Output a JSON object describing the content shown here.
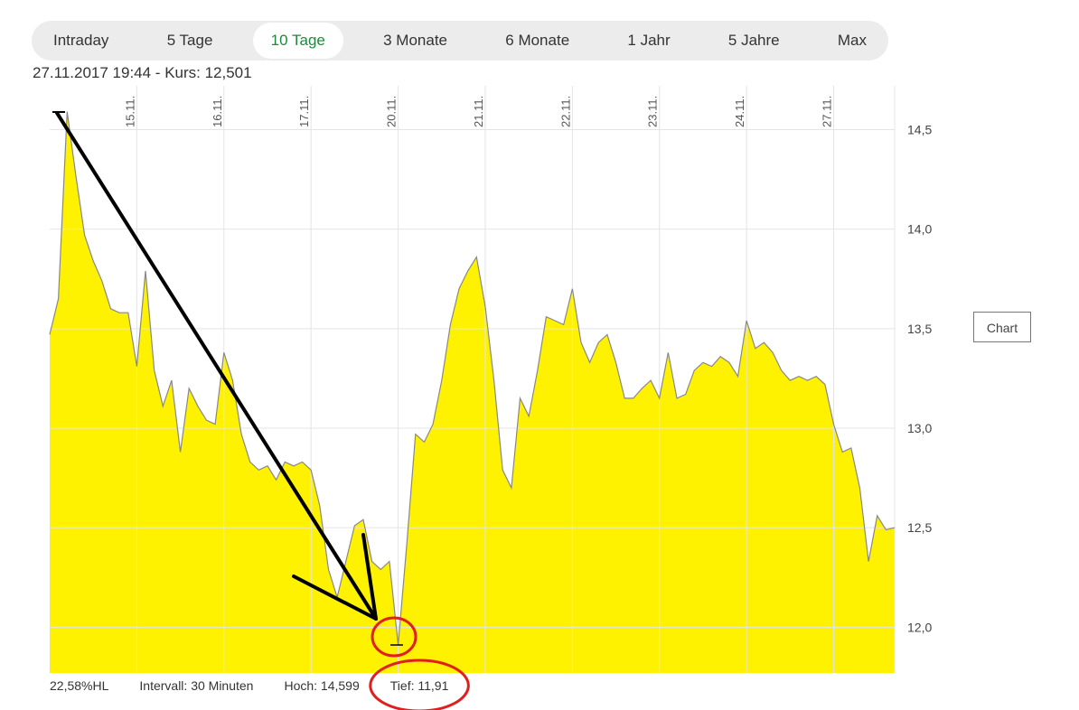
{
  "tabs": [
    "Intraday",
    "5 Tage",
    "10 Tage",
    "3 Monate",
    "6 Monate",
    "1 Jahr",
    "5 Jahre",
    "Max"
  ],
  "active_tab": "10 Tage",
  "header": {
    "info": "27.11.2017 19:44  -  Kurs: 12,501"
  },
  "side_button": "Chart",
  "stats": {
    "hl": "22,58%HL",
    "interval": "Intervall: 30 Minuten",
    "high": "Hoch:  14,599",
    "low": "Tief:   11,91"
  },
  "colors": {
    "fill": "#fff200",
    "line": "#888888",
    "accent": "#1c8a3a",
    "annotation_arrow": "#000000",
    "annotation_circle": "#e02020"
  },
  "chart_data": {
    "type": "area",
    "interval": "30 Minuten",
    "ylim": [
      11.77,
      14.72
    ],
    "y_ticks": [
      "14,5",
      "14,0",
      "13,5",
      "13,0",
      "12,5",
      "12,0"
    ],
    "y_tick_values": [
      14.5,
      14.0,
      13.5,
      13.0,
      12.5,
      12.0
    ],
    "x_tick_labels": [
      "15.11.",
      "16.11.",
      "17.11.",
      "20.11.",
      "21.11.",
      "22.11.",
      "23.11.",
      "24.11.",
      "27.11."
    ],
    "x_tick_index": [
      10,
      20,
      30,
      40,
      50,
      60,
      70,
      80,
      90
    ],
    "grid": true,
    "values": [
      13.47,
      13.65,
      14.59,
      14.27,
      13.97,
      13.84,
      13.74,
      13.6,
      13.58,
      13.58,
      13.31,
      13.79,
      13.29,
      13.11,
      13.24,
      12.88,
      13.2,
      13.11,
      13.04,
      13.02,
      13.38,
      13.24,
      12.97,
      12.83,
      12.79,
      12.81,
      12.74,
      12.83,
      12.81,
      12.83,
      12.79,
      12.61,
      12.29,
      12.15,
      12.33,
      12.51,
      12.54,
      12.33,
      12.29,
      12.33,
      11.91,
      12.42,
      12.97,
      12.93,
      13.02,
      13.24,
      13.52,
      13.7,
      13.79,
      13.86,
      13.61,
      13.24,
      12.79,
      12.7,
      13.15,
      13.06,
      13.29,
      13.56,
      13.54,
      13.52,
      13.7,
      13.43,
      13.33,
      13.43,
      13.47,
      13.33,
      13.15,
      13.15,
      13.2,
      13.24,
      13.15,
      13.38,
      13.15,
      13.17,
      13.29,
      13.33,
      13.31,
      13.36,
      13.33,
      13.26,
      13.54,
      13.4,
      13.43,
      13.38,
      13.29,
      13.24,
      13.26,
      13.24,
      13.26,
      13.22,
      13.02,
      12.88,
      12.9,
      12.7,
      12.33,
      12.56,
      12.49,
      12.5
    ]
  }
}
